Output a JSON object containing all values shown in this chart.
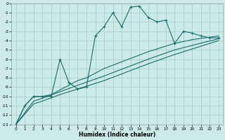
{
  "xlabel": "Humidex (Indice chaleur)",
  "bg_color": "#cceae8",
  "grid_color": "#aad4d0",
  "line_color": "#1a6b6b",
  "xlim": [
    -0.5,
    23.5
  ],
  "ylim": [
    -13,
    0
  ],
  "xticks": [
    0,
    1,
    2,
    3,
    4,
    5,
    6,
    7,
    8,
    9,
    10,
    11,
    12,
    13,
    14,
    15,
    16,
    17,
    18,
    19,
    20,
    21,
    22,
    23
  ],
  "yticks": [
    0,
    -1,
    -2,
    -3,
    -4,
    -5,
    -6,
    -7,
    -8,
    -9,
    -10,
    -11,
    -12,
    -13
  ],
  "series_main": [
    [
      0,
      -13
    ],
    [
      1,
      -11
    ],
    [
      2,
      -10
    ],
    [
      3,
      -10
    ],
    [
      4,
      -10
    ],
    [
      5,
      -6
    ],
    [
      6,
      -8.5
    ],
    [
      7,
      -9.2
    ],
    [
      8,
      -9.0
    ],
    [
      9,
      -3.5
    ],
    [
      10,
      -2.5
    ],
    [
      11,
      -1.0
    ],
    [
      12,
      -2.5
    ],
    [
      13,
      -0.4
    ],
    [
      14,
      -0.3
    ],
    [
      15,
      -1.5
    ],
    [
      16,
      -2.0
    ],
    [
      17,
      -1.8
    ],
    [
      18,
      -4.3
    ],
    [
      19,
      -3.0
    ],
    [
      20,
      -3.2
    ],
    [
      21,
      -3.5
    ],
    [
      22,
      -3.7
    ],
    [
      23,
      -3.7
    ]
  ],
  "series_lin1": [
    [
      0,
      -13
    ],
    [
      1,
      -11.0
    ],
    [
      2,
      -10.0
    ],
    [
      3,
      -10.0
    ],
    [
      4,
      -9.8
    ],
    [
      5,
      -9.3
    ],
    [
      6,
      -8.8
    ],
    [
      7,
      -8.3
    ],
    [
      8,
      -8.0
    ],
    [
      9,
      -7.5
    ],
    [
      10,
      -7.0
    ],
    [
      15,
      -5.2
    ],
    [
      18,
      -4.3
    ],
    [
      20,
      -3.9
    ],
    [
      23,
      -3.5
    ]
  ],
  "series_lin2": [
    [
      0,
      -13
    ],
    [
      2,
      -10.5
    ],
    [
      3,
      -10.2
    ],
    [
      5,
      -9.5
    ],
    [
      7,
      -8.8
    ],
    [
      10,
      -7.8
    ],
    [
      15,
      -6.0
    ],
    [
      18,
      -5.0
    ],
    [
      23,
      -3.8
    ]
  ],
  "series_lin3": [
    [
      0,
      -13
    ],
    [
      2,
      -10.8
    ],
    [
      3,
      -10.5
    ],
    [
      5,
      -9.8
    ],
    [
      7,
      -9.2
    ],
    [
      10,
      -8.3
    ],
    [
      15,
      -6.5
    ],
    [
      18,
      -5.5
    ],
    [
      23,
      -4.0
    ]
  ]
}
